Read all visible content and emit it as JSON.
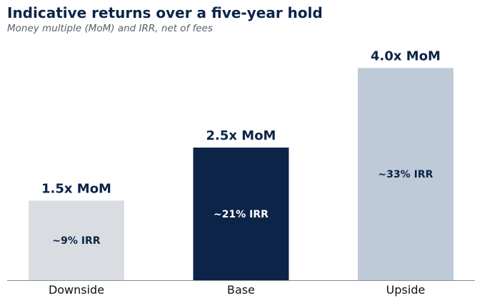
{
  "title": "Indicative returns over a five-year hold",
  "subtitle": "Money multiple (MoM) and IRR, net of fees",
  "chart_data": {
    "type": "bar",
    "title": "Indicative returns over a five-year hold",
    "subtitle": "Money multiple (MoM) and IRR, net of fees",
    "categories": [
      "Downside",
      "Base",
      "Upside"
    ],
    "values": [
      1.5,
      2.5,
      4.0
    ],
    "value_labels": [
      "1.5x MoM",
      "2.5x MoM",
      "4.0x MoM"
    ],
    "irr_labels": [
      "~9% IRR",
      "~21% IRR",
      "~33% IRR"
    ],
    "colors": [
      "#d9dde1",
      "#0b2447",
      "#bfcad8"
    ],
    "irr_label_colors": [
      "#0b2447",
      "#ffffff",
      "#0b2447"
    ],
    "axis_color": "#8a8a8a",
    "ylim": [
      0,
      4.5
    ],
    "grid": false,
    "legend": "none"
  }
}
